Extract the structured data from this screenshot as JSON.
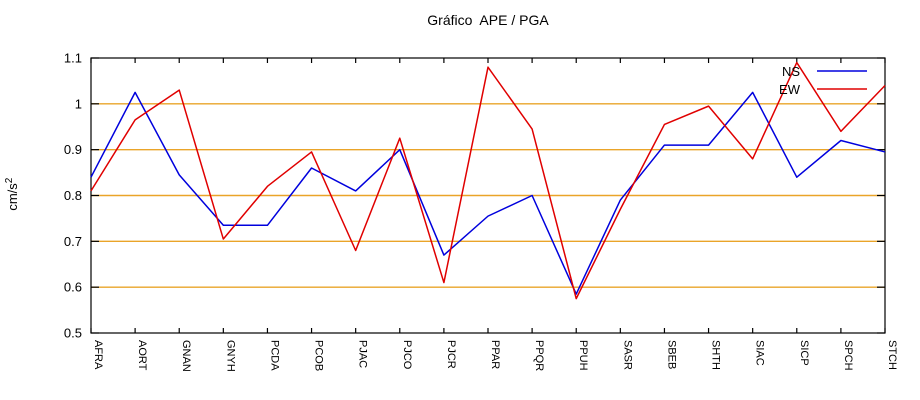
{
  "title": "Gráfico  APE / PGA",
  "chart_data": {
    "type": "line",
    "title": "Gráfico  APE / PGA",
    "ylabel_base": "cm/s",
    "ylabel_exponent": "2",
    "xlabel": "",
    "ylim": [
      0.5,
      1.1
    ],
    "yticks": [
      0.5,
      0.6,
      0.7,
      0.8,
      0.9,
      1,
      1.1
    ],
    "ytick_labels": [
      "0.5",
      "0.6",
      "0.7",
      "0.8",
      "0.9",
      "1",
      "1.1"
    ],
    "grid": true,
    "grid_color": "#eaa429",
    "frame_color": "#000000",
    "background": "#ffffff",
    "legend_position": "top-right",
    "categories": [
      "AFRA",
      "AORT",
      "GNAN",
      "GNYH",
      "PCDA",
      "PCOB",
      "PJAC",
      "PJCO",
      "PJCR",
      "PPAR",
      "PPQR",
      "PPUH",
      "SASR",
      "SBEB",
      "SHTH",
      "SIAC",
      "SICP",
      "SPCH",
      "STCH"
    ],
    "series": [
      {
        "name": "NS",
        "color": "#0000dd",
        "values": [
          0.84,
          1.025,
          0.845,
          0.735,
          0.735,
          0.86,
          0.81,
          0.9,
          0.67,
          0.755,
          0.8,
          0.585,
          0.79,
          0.91,
          0.91,
          1.025,
          0.84,
          0.92,
          0.895
        ]
      },
      {
        "name": "EW",
        "color": "#e00000",
        "values": [
          0.81,
          0.965,
          1.03,
          0.705,
          0.82,
          0.895,
          0.68,
          0.925,
          0.61,
          1.08,
          0.945,
          0.575,
          0.77,
          0.955,
          0.995,
          0.88,
          1.09,
          0.94,
          1.04
        ]
      }
    ]
  }
}
